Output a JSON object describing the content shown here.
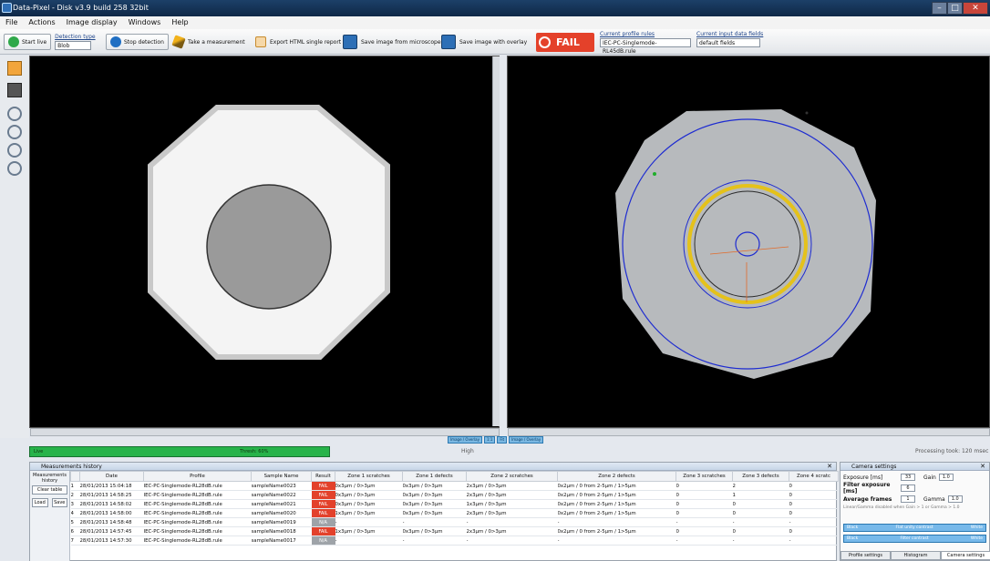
{
  "window": {
    "title": "Data-Pixel - Disk v3.9 build 258 32bit"
  },
  "menu": [
    "File",
    "Actions",
    "Image display",
    "Windows",
    "Help"
  ],
  "toolbar": {
    "start_live": "Start live",
    "detection_type_label": "Detection type",
    "detection_type_value": "Blob",
    "stop_detection": "Stop detection",
    "take_measurement": "Take a measurement",
    "export_html": "Export HTML single report",
    "save_from_microscope": "Save image from microscope",
    "save_with_overlay": "Save image with overlay",
    "fail_label": "FAIL",
    "profile_rules_label": "Current profile rules",
    "profile_rules_value": "IEC-PC-Singlemode-RL45dB.rule",
    "data_fields_label": "Current input data fields",
    "data_fields_value": "default fields"
  },
  "status": {
    "progress_label": "Live",
    "progress_text": "Thresh: 60%",
    "high_label": "High",
    "processing_text": "Processing took: 120 msec"
  },
  "history": {
    "panel_title": "Measurements history",
    "side_label": "Measurements history",
    "clear_table": "Clear table",
    "load": "Load",
    "save": "Save",
    "columns": [
      "",
      "Date",
      "Profile",
      "Sample Name",
      "Result",
      "Zone 1 scratches",
      "Zone 1 defects",
      "Zone 2 scratches",
      "Zone 2 defects",
      "Zone 3 scratches",
      "Zone 3 defects",
      "Zone 4 scratc"
    ],
    "rows": [
      {
        "n": "1",
        "date": "28/01/2013 15:04:18",
        "profile": "IEC-PC-Singlemode-RL28dB.rule",
        "sample": "sampleName0023",
        "result": "FAIL",
        "color": "#e3412b",
        "z1s": "0x3µm / 0>3µm",
        "z1d": "0x3µm / 0>3µm",
        "z2s": "2x3µm / 0>3µm",
        "z2d": "0x2µm / 0 from 2-5µm / 1>5µm",
        "z3s": "0",
        "z3d": "2",
        "z4s": "0"
      },
      {
        "n": "2",
        "date": "28/01/2013 14:58:25",
        "profile": "IEC-PC-Singlemode-RL28dB.rule",
        "sample": "sampleName0022",
        "result": "FAIL",
        "color": "#e3412b",
        "z1s": "0x3µm / 0>3µm",
        "z1d": "0x3µm / 0>3µm",
        "z2s": "2x3µm / 0>3µm",
        "z2d": "0x2µm / 0 from 2-5µm / 1>5µm",
        "z3s": "0",
        "z3d": "1",
        "z4s": "0"
      },
      {
        "n": "3",
        "date": "28/01/2013 14:58:02",
        "profile": "IEC-PC-Singlemode-RL28dB.rule",
        "sample": "sampleName0021",
        "result": "FAIL",
        "color": "#e3412b",
        "z1s": "0x3µm / 0>3µm",
        "z1d": "0x3µm / 0>3µm",
        "z2s": "1x3µm / 0>3µm",
        "z2d": "0x2µm / 0 from 2-5µm / 1>5µm",
        "z3s": "0",
        "z3d": "0",
        "z4s": "0"
      },
      {
        "n": "4",
        "date": "28/01/2013 14:58:00",
        "profile": "IEC-PC-Singlemode-RL28dB.rule",
        "sample": "sampleName0020",
        "result": "FAIL",
        "color": "#e3412b",
        "z1s": "1x3µm / 0>3µm",
        "z1d": "0x3µm / 0>3µm",
        "z2s": "2x3µm / 0>3µm",
        "z2d": "0x2µm / 0 from 2-5µm / 1>5µm",
        "z3s": "0",
        "z3d": "0",
        "z4s": "0"
      },
      {
        "n": "5",
        "date": "28/01/2013 14:58:48",
        "profile": "IEC-PC-Singlemode-RL28dB.rule",
        "sample": "sampleName0019",
        "result": "N/A",
        "color": "#9ea3a8",
        "z1s": "-",
        "z1d": "-",
        "z2s": "-",
        "z2d": "-",
        "z3s": "-",
        "z3d": "-",
        "z4s": "-"
      },
      {
        "n": "6",
        "date": "28/01/2013 14:57:45",
        "profile": "IEC-PC-Singlemode-RL28dB.rule",
        "sample": "sampleName0018",
        "result": "FAIL",
        "color": "#e3412b",
        "z1s": "1x3µm / 0>3µm",
        "z1d": "0x3µm / 0>3µm",
        "z2s": "2x3µm / 0>3µm",
        "z2d": "0x2µm / 0 from 2-5µm / 1>5µm",
        "z3s": "0",
        "z3d": "0",
        "z4s": "0"
      },
      {
        "n": "7",
        "date": "28/01/2013 14:57:30",
        "profile": "IEC-PC-Singlemode-RL28dB.rule",
        "sample": "sampleName0017",
        "result": "N/A",
        "color": "#9ea3a8",
        "z1s": "-",
        "z1d": "-",
        "z2s": "-",
        "z2d": "-",
        "z3s": "-",
        "z3d": "-",
        "z4s": "-"
      }
    ]
  },
  "camera": {
    "title": "Camera settings",
    "exposure_label": "Exposure [ms]",
    "exposure_value": "33",
    "gain_label": "Gain",
    "gain_value": "1.0",
    "filter_exposure_label": "Filter exposure [ms]",
    "filter_exposure_value": "6",
    "average_frames_label": "Average frames",
    "average_frames_value": "1",
    "gamma_label": "Gamma",
    "gamma_value": "1.0",
    "note": "Linear/Gamma disabled when Gain > 1 or Gamma > 1.0",
    "bar1": [
      "Black",
      "Flat unity contrast",
      "White"
    ],
    "bar2": [
      "Black",
      "Filter contrast",
      "White"
    ],
    "tabs": [
      "Profile settings",
      "Histogram",
      "Camera settings"
    ]
  },
  "views": {
    "nav": [
      "Image / Overlay",
      "1:1",
      "Fit",
      "Image / Overlay"
    ]
  }
}
